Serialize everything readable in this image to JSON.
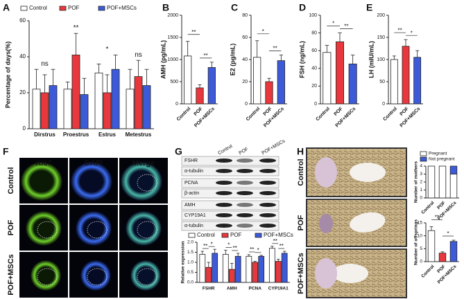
{
  "chart_data": [
    {
      "type": "bar",
      "panel": "A",
      "ylabel": "Percentage of days(%)",
      "categories": [
        "Dirstrus",
        "Proestrus",
        "Estrus",
        "Metestrus"
      ],
      "series": [
        {
          "name": "Control",
          "color": "#ffffff",
          "values": [
            22,
            22,
            31,
            22
          ],
          "errors": [
            11,
            4,
            5,
            11
          ]
        },
        {
          "name": "POF",
          "color": "#e8383d",
          "values": [
            20,
            41,
            20,
            29
          ],
          "errors": [
            10,
            12,
            10,
            9
          ]
        },
        {
          "name": "POF+MSCs",
          "color": "#3d5bd9",
          "values": [
            24,
            19,
            33,
            24
          ],
          "errors": [
            9,
            9,
            8,
            9
          ]
        }
      ],
      "ylim": [
        0,
        60
      ],
      "yticks": [
        0,
        20,
        40,
        60
      ],
      "annotations": [
        "ns",
        "**",
        "*",
        "ns"
      ],
      "annotation_colors": [
        "#222222",
        "#e8383d",
        "#e8383d",
        "#222222"
      ]
    },
    {
      "type": "bar",
      "panel": "B",
      "ylabel": "AMH (pg/mL)",
      "categories": [
        "Control",
        "POF",
        "POF+MSCs"
      ],
      "values": [
        1080,
        360,
        820
      ],
      "errors": [
        330,
        70,
        120
      ],
      "colors": [
        "#ffffff",
        "#e8383d",
        "#3d5bd9"
      ],
      "ylim": [
        0,
        2000
      ],
      "yticks": [
        0,
        500,
        1000,
        1500,
        2000
      ],
      "annotations": [
        "**",
        "**"
      ]
    },
    {
      "type": "bar",
      "panel": "C",
      "ylabel": "E2 (pg/mL)",
      "categories": [
        "Control",
        "POF",
        "POF+MSCs"
      ],
      "values": [
        42,
        20,
        39
      ],
      "errors": [
        15,
        3,
        5
      ],
      "colors": [
        "#ffffff",
        "#e8383d",
        "#3d5bd9"
      ],
      "ylim": [
        0,
        80
      ],
      "yticks": [
        0,
        20,
        40,
        60,
        80
      ],
      "annotations": [
        "*",
        "**"
      ]
    },
    {
      "type": "bar",
      "panel": "D",
      "ylabel": "FSH (ng/mL)",
      "categories": [
        "Control",
        "POF",
        "POF+MSCs"
      ],
      "values": [
        58,
        70,
        45
      ],
      "errors": [
        8,
        10,
        10
      ],
      "colors": [
        "#ffffff",
        "#e8383d",
        "#3d5bd9"
      ],
      "ylim": [
        0,
        100
      ],
      "yticks": [
        0,
        20,
        40,
        60,
        80,
        100
      ],
      "annotations": [
        "*",
        "**"
      ]
    },
    {
      "type": "bar",
      "panel": "E",
      "ylabel": "LH (mIU/mL)",
      "categories": [
        "Control",
        "POF",
        "POF+MSCs"
      ],
      "values": [
        100,
        130,
        105
      ],
      "errors": [
        8,
        15,
        15
      ],
      "colors": [
        "#ffffff",
        "#e8383d",
        "#3d5bd9"
      ],
      "ylim": [
        0,
        200
      ],
      "yticks": [
        0,
        50,
        100,
        150,
        200
      ],
      "annotations": [
        "**",
        "*"
      ]
    },
    {
      "type": "bar",
      "ylabel": "Relative expression",
      "categories": [
        "FSHR",
        "AMH",
        "PCNA",
        "CYP19A1"
      ],
      "series": [
        {
          "name": "Control",
          "color": "#ffffff",
          "values": [
            1.4,
            1.4,
            1.3,
            1.7
          ],
          "errors": [
            0.15,
            0.2,
            0.08,
            0.1
          ]
        },
        {
          "name": "POF",
          "color": "#e8383d",
          "values": [
            0.75,
            0.65,
            1.0,
            1.05
          ],
          "errors": [
            0.25,
            0.3,
            0.05,
            0.1
          ]
        },
        {
          "name": "POF+MSCs",
          "color": "#3d5bd9",
          "values": [
            1.45,
            1.3,
            1.3,
            1.45
          ],
          "errors": [
            0.2,
            0.15,
            0.05,
            0.1
          ]
        }
      ],
      "ylim": [
        0,
        2
      ],
      "yticks": [
        {
          "value": 0,
          "label": "0.0"
        },
        {
          "value": 0.5,
          "label": "0.5"
        },
        {
          "value": 1,
          "label": "1.0"
        },
        {
          "value": 1.5,
          "label": "1.5"
        },
        {
          "value": 2,
          "label": "2.0"
        }
      ],
      "annotations": [
        [
          "**",
          "*"
        ],
        [
          "*",
          "**"
        ],
        [
          "**",
          "*"
        ],
        [
          "**",
          "**"
        ]
      ]
    },
    {
      "type": "stacked_bar",
      "ylabel": "Number of mothers",
      "categories": [
        "Control",
        "POF",
        "POF+MSCs"
      ],
      "series": [
        {
          "name": "Pregnant",
          "color": "#ffffff",
          "values": [
            4,
            4,
            3
          ]
        },
        {
          "name": "Not pregnant",
          "color": "#3d5bd9",
          "values": [
            0,
            0,
            1
          ]
        }
      ],
      "ylim": [
        0,
        4
      ],
      "yticks": [
        0,
        1,
        2,
        3,
        4
      ]
    },
    {
      "type": "bar",
      "ylabel": "Number of offsprings",
      "categories": [
        "Control",
        "POF",
        "POF+MSCs"
      ],
      "values": [
        12,
        3.3,
        7.8
      ],
      "errors": [
        1.5,
        0.5,
        0.5
      ],
      "colors": [
        "#ffffff",
        "#e8383d",
        "#3d5bd9"
      ],
      "ylim": [
        0,
        15
      ],
      "yticks": [
        0,
        5,
        10,
        15
      ],
      "annotations": [
        "**",
        "*"
      ]
    }
  ],
  "micrograph": {
    "panel": "F",
    "columns": [
      "Ki67",
      "DAPI",
      "Merge"
    ],
    "rows": [
      "Control",
      "POF",
      "POF+MSCs"
    ]
  },
  "western_blot": {
    "panel": "G",
    "lanes": [
      "Control",
      "POF",
      "POF+MSCs"
    ],
    "proteins": [
      "FSHR",
      "α-tubulin",
      "PCNA",
      "β-actin",
      "AMH",
      "CYP19A1",
      "α-tubulin"
    ]
  },
  "photos": {
    "panel": "H",
    "rows": [
      "Control",
      "POF",
      "POF+MSCs"
    ]
  }
}
